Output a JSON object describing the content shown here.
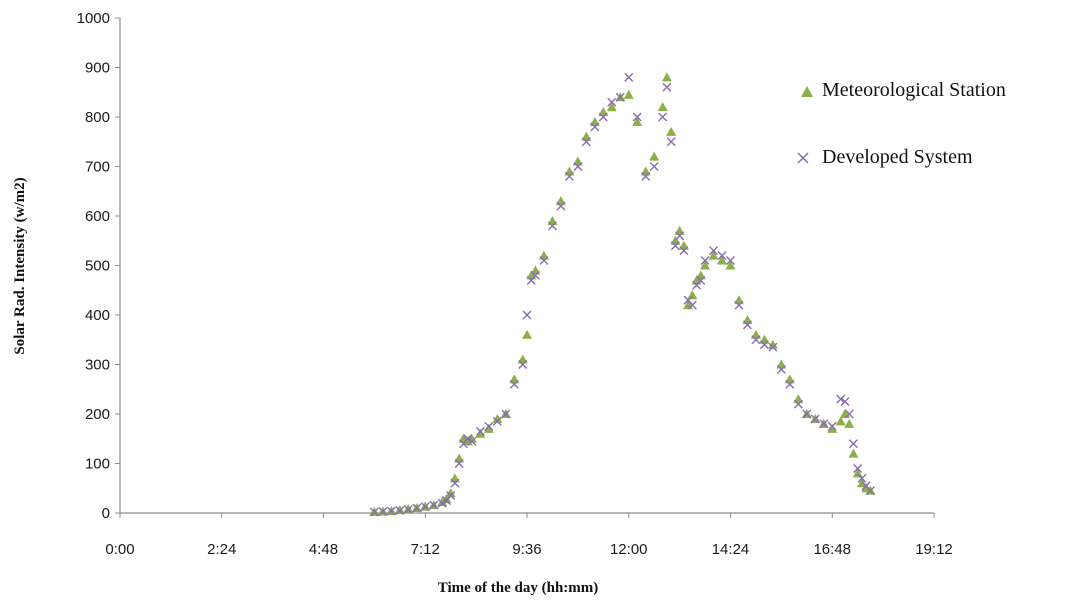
{
  "chart_data": {
    "type": "scatter",
    "title": "",
    "xlabel": "Time of the day (hh:mm)",
    "ylabel": "Solar Rad. Intensity (w/m2)",
    "xlim": [
      0,
      19.2
    ],
    "ylim": [
      0,
      1000
    ],
    "x_ticks": [
      0,
      2.4,
      4.8,
      7.2,
      9.6,
      12.0,
      14.4,
      16.8,
      19.2
    ],
    "x_tick_labels": [
      "0:00",
      "2:24",
      "4:48",
      "7:12",
      "9:36",
      "12:00",
      "14:24",
      "16:48",
      "19:12"
    ],
    "y_ticks": [
      0,
      100,
      200,
      300,
      400,
      500,
      600,
      700,
      800,
      900,
      1000
    ],
    "y_tick_labels": [
      "0",
      "100",
      "200",
      "300",
      "400",
      "500",
      "600",
      "700",
      "800",
      "900",
      "1000"
    ],
    "grid": false,
    "legend_position": "top-right",
    "colors": {
      "meteorological": "#8bb04a",
      "developed": "#8a6bb0",
      "axis": "#8c8c8c"
    },
    "series": [
      {
        "name": "Meteorological Station",
        "marker": "triangle",
        "x": [
          6.0,
          6.2,
          6.4,
          6.6,
          6.8,
          7.0,
          7.2,
          7.4,
          7.6,
          7.7,
          7.8,
          7.9,
          8.0,
          8.1,
          8.2,
          8.3,
          8.5,
          8.7,
          8.9,
          9.1,
          9.3,
          9.5,
          9.6,
          9.7,
          9.8,
          10.0,
          10.2,
          10.4,
          10.6,
          10.8,
          11.0,
          11.2,
          11.4,
          11.6,
          11.8,
          12.0,
          12.2,
          12.4,
          12.6,
          12.8,
          12.9,
          13.0,
          13.1,
          13.2,
          13.3,
          13.4,
          13.5,
          13.6,
          13.7,
          13.8,
          14.0,
          14.2,
          14.4,
          14.6,
          14.8,
          15.0,
          15.2,
          15.4,
          15.6,
          15.8,
          16.0,
          16.2,
          16.4,
          16.6,
          16.8,
          17.0,
          17.1,
          17.2,
          17.3,
          17.4,
          17.5,
          17.6,
          17.7
        ],
        "y": [
          2,
          3,
          4,
          6,
          8,
          10,
          13,
          16,
          22,
          28,
          40,
          70,
          110,
          150,
          145,
          150,
          160,
          170,
          190,
          200,
          270,
          310,
          360,
          480,
          490,
          520,
          590,
          630,
          690,
          710,
          760,
          790,
          810,
          820,
          840,
          845,
          790,
          690,
          720,
          820,
          880,
          770,
          550,
          570,
          540,
          420,
          440,
          470,
          480,
          500,
          520,
          510,
          500,
          430,
          390,
          360,
          350,
          340,
          300,
          270,
          230,
          200,
          190,
          180,
          170,
          185,
          200,
          180,
          120,
          80,
          60,
          50,
          45
        ]
      },
      {
        "name": "Developed System",
        "marker": "x",
        "x": [
          6.0,
          6.2,
          6.4,
          6.6,
          6.8,
          7.0,
          7.2,
          7.4,
          7.6,
          7.7,
          7.8,
          7.9,
          8.0,
          8.1,
          8.2,
          8.3,
          8.5,
          8.7,
          8.9,
          9.1,
          9.3,
          9.5,
          9.6,
          9.7,
          9.8,
          10.0,
          10.2,
          10.4,
          10.6,
          10.8,
          11.0,
          11.2,
          11.4,
          11.6,
          11.8,
          12.0,
          12.2,
          12.4,
          12.6,
          12.8,
          12.9,
          13.0,
          13.1,
          13.2,
          13.3,
          13.4,
          13.5,
          13.6,
          13.7,
          13.8,
          14.0,
          14.2,
          14.4,
          14.6,
          14.8,
          15.0,
          15.2,
          15.4,
          15.6,
          15.8,
          16.0,
          16.2,
          16.4,
          16.6,
          16.8,
          17.0,
          17.1,
          17.2,
          17.3,
          17.4,
          17.5,
          17.6,
          17.7
        ],
        "y": [
          2,
          3,
          4,
          5,
          7,
          10,
          13,
          16,
          20,
          25,
          35,
          60,
          100,
          140,
          150,
          145,
          165,
          175,
          185,
          200,
          260,
          300,
          400,
          470,
          480,
          510,
          580,
          620,
          680,
          700,
          750,
          780,
          800,
          830,
          840,
          880,
          800,
          680,
          700,
          800,
          860,
          750,
          540,
          560,
          530,
          430,
          420,
          460,
          470,
          510,
          530,
          520,
          510,
          420,
          380,
          350,
          340,
          335,
          290,
          260,
          220,
          200,
          190,
          180,
          175,
          230,
          225,
          200,
          140,
          90,
          70,
          55,
          45
        ]
      }
    ]
  }
}
